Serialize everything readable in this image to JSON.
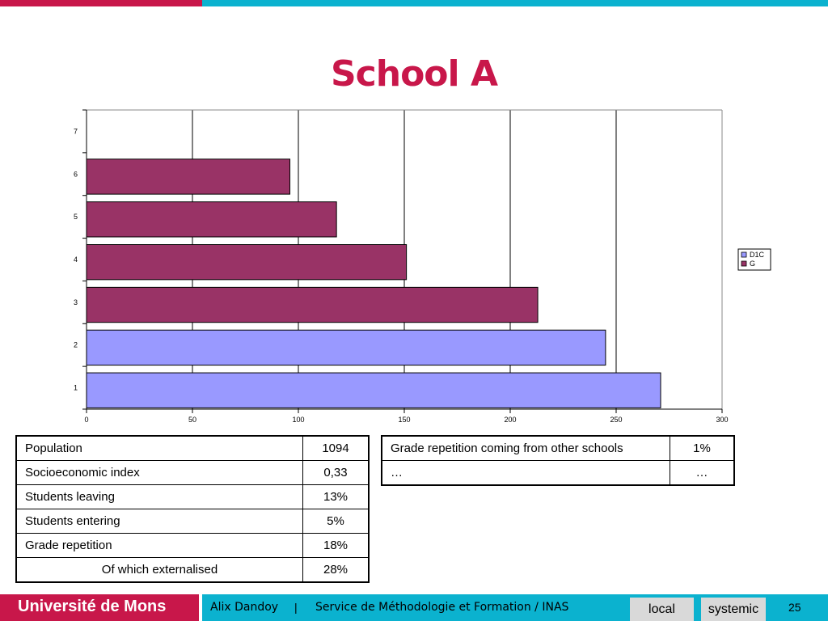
{
  "colors": {
    "accent_red": "#c8174a",
    "accent_blue": "#0bb2cf",
    "title": "#c8174a",
    "footer_bar": "#0bb2cf",
    "tag_bg": "#d9d9d9",
    "series_d1c": "#9999ff",
    "series_g": "#993366",
    "grid": "#000000"
  },
  "slide": {
    "title": "School A"
  },
  "chart_data": {
    "type": "bar",
    "orientation": "horizontal",
    "categories": [
      "1",
      "2",
      "3",
      "4",
      "5",
      "6",
      "7"
    ],
    "series": [
      {
        "name": "D1C",
        "color": "#9999ff",
        "values": [
          271,
          245,
          null,
          null,
          null,
          null,
          null
        ]
      },
      {
        "name": "G",
        "color": "#993366",
        "values": [
          null,
          null,
          213,
          151,
          118,
          96,
          null
        ]
      }
    ],
    "x_ticks": [
      "0",
      "50",
      "100",
      "150",
      "200",
      "250",
      "300"
    ],
    "xlim": [
      0,
      300
    ],
    "grid": "vertical",
    "legend": "right"
  },
  "table_left": {
    "rows": [
      {
        "label": "Population",
        "value": "1094"
      },
      {
        "label": "Socioeconomic index",
        "value": "0,33"
      },
      {
        "label": "Students leaving",
        "value": "13%"
      },
      {
        "label": "Students entering",
        "value": "5%"
      },
      {
        "label": "Grade repetition",
        "value": "18%"
      },
      {
        "label": "Of which externalised",
        "value": "28%"
      }
    ]
  },
  "table_right": {
    "rows": [
      {
        "label": "Grade repetition coming from other schools",
        "value": "1%"
      },
      {
        "label": "…",
        "value": "…"
      }
    ]
  },
  "footer": {
    "brand": "Université de Mons",
    "author": "Alix Dandoy",
    "separator": "|",
    "service": "Service de Méthodologie et Formation / INAS",
    "tag_local": "local",
    "tag_systemic": "systemic",
    "page": "25"
  }
}
